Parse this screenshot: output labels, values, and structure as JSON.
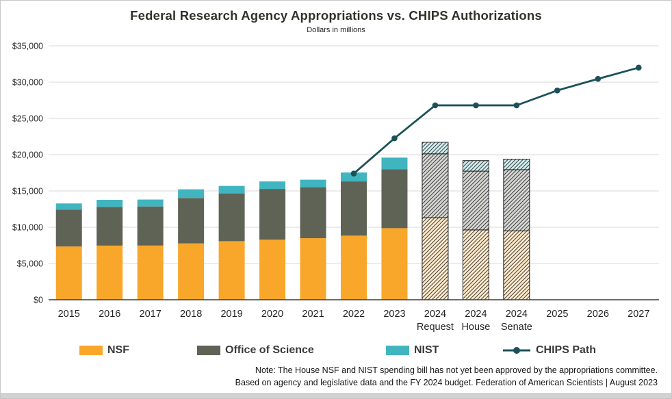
{
  "title": "Federal Research Agency Appropriations vs. CHIPS Authorizations",
  "subtitle": "Dollars in millions",
  "notes": {
    "line1": "Note: The House NSF and NIST spending bill has not yet been approved by the appropriations committee.",
    "line2": "Based on agency and legislative data and the FY 2024 budget. Federation of American Scientists | August 2023"
  },
  "legend": [
    {
      "label": "NSF",
      "type": "swatch",
      "color": "#F8A72B"
    },
    {
      "label": "Office of Science",
      "type": "swatch",
      "color": "#5F6356"
    },
    {
      "label": "NIST",
      "type": "swatch",
      "color": "#41B5BF"
    },
    {
      "label": "CHIPS Path",
      "type": "line",
      "color": "#1D5159"
    }
  ],
  "chart_data": {
    "type": "bar",
    "stacked": true,
    "title": "Federal Research Agency Appropriations vs. CHIPS Authorizations",
    "subtitle": "Dollars in millions",
    "categories": [
      "2015",
      "2016",
      "2017",
      "2018",
      "2019",
      "2020",
      "2021",
      "2022",
      "2023",
      "2024 Request",
      "2024 House",
      "2024 Senate",
      "2025",
      "2026",
      "2027"
    ],
    "category_labels": [
      [
        "2015"
      ],
      [
        "2016"
      ],
      [
        "2017"
      ],
      [
        "2018"
      ],
      [
        "2019"
      ],
      [
        "2020"
      ],
      [
        "2021"
      ],
      [
        "2022"
      ],
      [
        "2023"
      ],
      [
        "2024",
        "Request"
      ],
      [
        "2024",
        "House"
      ],
      [
        "2024",
        "Senate"
      ],
      [
        "2025"
      ],
      [
        "2026"
      ],
      [
        "2027"
      ]
    ],
    "hatched": [
      false,
      false,
      false,
      false,
      false,
      false,
      false,
      false,
      false,
      true,
      true,
      true,
      false,
      false,
      false
    ],
    "series": [
      {
        "name": "NSF",
        "type": "bar",
        "color": "#F8A72B",
        "values": [
          7344,
          7463,
          7472,
          7767,
          8075,
          8278,
          8487,
          8838,
          9870,
          11314,
          9630,
          9500,
          null,
          null,
          null
        ]
      },
      {
        "name": "Office of Science",
        "type": "bar",
        "color": "#5F6356",
        "values": [
          5068,
          5347,
          5392,
          6260,
          6585,
          7000,
          7026,
          7475,
          8100,
          8800,
          8100,
          8430,
          null,
          null,
          null
        ]
      },
      {
        "name": "NIST",
        "type": "bar",
        "color": "#41B5BF",
        "values": [
          864,
          964,
          952,
          1199,
          1034,
          1034,
          1035,
          1230,
          1628,
          1600,
          1450,
          1450,
          null,
          null,
          null
        ]
      },
      {
        "name": "CHIPS Path",
        "type": "line",
        "color": "#1D5159",
        "values": [
          null,
          null,
          null,
          null,
          null,
          null,
          null,
          17400,
          22260,
          26800,
          26800,
          26800,
          28850,
          30450,
          32000
        ]
      }
    ],
    "ylim": [
      0,
      35000
    ],
    "ytick_step": 5000,
    "ytick_labels": [
      "$0",
      "$5,000",
      "$10,000",
      "$15,000",
      "$20,000",
      "$25,000",
      "$30,000",
      "$35,000"
    ],
    "grid": true,
    "legend_position": "bottom"
  }
}
